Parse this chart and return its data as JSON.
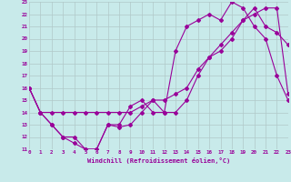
{
  "xlabel": "Windchill (Refroidissement éolien,°C)",
  "bg_color": "#c8eaea",
  "grid_color": "#b0c8c8",
  "line_color": "#990099",
  "xmin": 0,
  "xmax": 23,
  "ymin": 11,
  "ymax": 23,
  "line1_x": [
    0,
    1,
    2,
    3,
    4,
    5,
    6,
    7,
    8,
    9,
    10,
    11,
    12,
    13,
    14,
    15,
    16,
    17,
    18,
    19,
    20,
    21,
    22,
    23
  ],
  "line1_y": [
    16,
    14,
    13,
    12,
    12,
    11,
    11,
    13,
    13,
    14.5,
    15,
    14,
    14,
    19,
    21,
    21.5,
    22,
    21.5,
    23,
    22.5,
    21,
    20,
    17,
    15
  ],
  "line2_x": [
    0,
    1,
    2,
    3,
    4,
    5,
    6,
    7,
    8,
    9,
    10,
    11,
    12,
    13,
    14,
    15,
    16,
    17,
    18,
    19,
    20,
    21,
    22,
    23
  ],
  "line2_y": [
    16,
    14,
    14,
    14,
    14,
    14,
    14,
    14,
    14,
    14,
    14.5,
    15,
    15,
    15.5,
    16,
    17.5,
    18.5,
    19.5,
    20.5,
    21.5,
    22,
    22.5,
    22.5,
    15.5
  ],
  "line3_x": [
    0,
    1,
    2,
    3,
    4,
    5,
    6,
    7,
    8,
    9,
    10,
    11,
    12,
    13,
    14,
    15,
    16,
    17,
    18,
    19,
    20,
    21,
    22,
    23
  ],
  "line3_y": [
    16,
    14,
    13,
    12,
    11.5,
    11,
    11,
    13,
    12.8,
    13,
    14,
    15,
    14,
    14,
    15,
    17,
    18.5,
    19,
    20,
    21.5,
    22.5,
    21,
    20.5,
    19.5
  ]
}
